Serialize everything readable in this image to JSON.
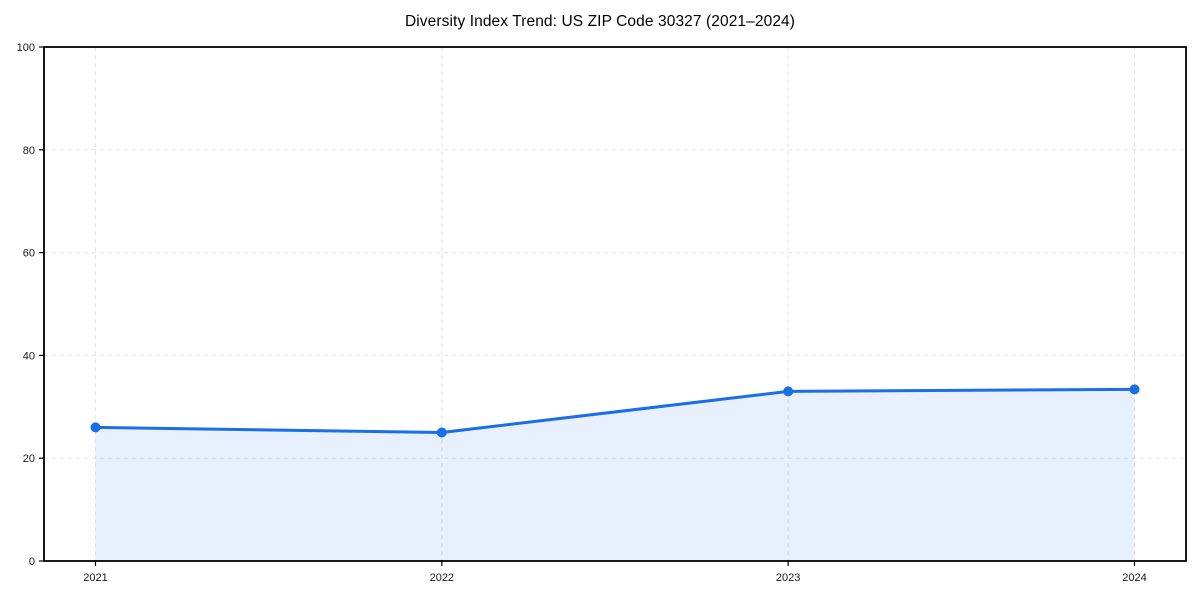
{
  "page": {
    "background": "#ffffff"
  },
  "chart_data": {
    "type": "area",
    "title": "Diversity Index Trend: US ZIP Code 30327 (2021–2024)",
    "x": [
      "2021",
      "2022",
      "2023",
      "2024"
    ],
    "values": [
      26,
      25,
      33,
      33.4
    ],
    "xlabel": "",
    "ylabel": "",
    "ylim": [
      0,
      100
    ],
    "yticks": [
      0,
      20,
      40,
      60,
      80,
      100
    ],
    "grid": "dashed",
    "legend": "none",
    "marker": "circle",
    "colors": {
      "line": "#1a6ee8",
      "marker": "#1a6ee8",
      "area_fill": "rgba(26,110,232,0.10)",
      "grid": "#e3e3e3",
      "axis": "#000000",
      "text": "#1a1a1a"
    }
  }
}
